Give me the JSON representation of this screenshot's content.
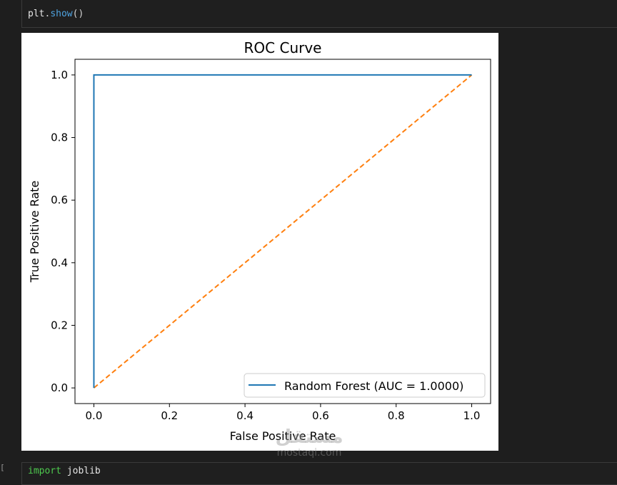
{
  "cell_top": {
    "code_var": "plt",
    "code_dot": ".",
    "code_fn": "show",
    "code_parens": "()"
  },
  "cell_bottom": {
    "exec_count": "[",
    "code_kw": "import",
    "code_rest": " joblib"
  },
  "watermark": {
    "arabic": "مستقل",
    "latin": "mostaql.com"
  },
  "colors": {
    "roc": "#1f77b4",
    "diagonal": "#ff7f0e",
    "background": "#1e1e1e"
  },
  "chart_data": {
    "type": "line",
    "title": "ROC Curve",
    "xlabel": "False Positive Rate",
    "ylabel": "True Positive Rate",
    "xlim": [
      -0.05,
      1.05
    ],
    "ylim": [
      -0.05,
      1.05
    ],
    "xticks": [
      "0.0",
      "0.2",
      "0.4",
      "0.6",
      "0.8",
      "1.0"
    ],
    "yticks": [
      "0.0",
      "0.2",
      "0.4",
      "0.6",
      "0.8",
      "1.0"
    ],
    "grid": false,
    "legend_position": "lower-right",
    "series": [
      {
        "name": "Random Forest (AUC = 1.0000)",
        "style": "solid",
        "x": [
          0,
          0,
          1
        ],
        "y": [
          0,
          1,
          1
        ]
      },
      {
        "style": "dashed",
        "x": [
          0,
          1
        ],
        "y": [
          0,
          1
        ]
      }
    ]
  }
}
